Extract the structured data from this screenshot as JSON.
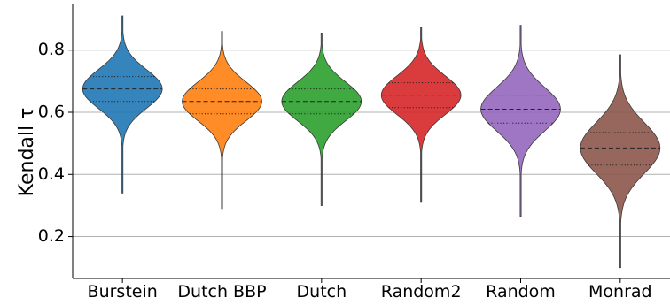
{
  "chart_data": {
    "type": "violin",
    "title": "",
    "xlabel": "",
    "ylabel": "Kendall τ",
    "ylim": [
      0.065,
      0.95
    ],
    "yticks": [
      0.2,
      0.4,
      0.6,
      0.8
    ],
    "grid": "horizontal",
    "categories": [
      "Burstein",
      "Dutch BBP",
      "Dutch",
      "Random2",
      "Random",
      "Monrad"
    ],
    "colors": [
      "#1f77b4",
      "#ff7f0e",
      "#2ca02c",
      "#d62728",
      "#9467bd",
      "#8c564b"
    ],
    "violins": [
      {
        "name": "Burstein",
        "min": 0.34,
        "q1": 0.635,
        "median": 0.675,
        "q3": 0.715,
        "max": 0.91
      },
      {
        "name": "Dutch BBP",
        "min": 0.29,
        "q1": 0.595,
        "median": 0.635,
        "q3": 0.675,
        "max": 0.86
      },
      {
        "name": "Dutch",
        "min": 0.3,
        "q1": 0.595,
        "median": 0.635,
        "q3": 0.675,
        "max": 0.855
      },
      {
        "name": "Random2",
        "min": 0.31,
        "q1": 0.615,
        "median": 0.655,
        "q3": 0.695,
        "max": 0.875
      },
      {
        "name": "Random",
        "min": 0.265,
        "q1": 0.565,
        "median": 0.61,
        "q3": 0.655,
        "max": 0.88
      },
      {
        "name": "Monrad",
        "min": 0.1,
        "q1": 0.43,
        "median": 0.485,
        "q3": 0.535,
        "max": 0.785
      }
    ]
  }
}
